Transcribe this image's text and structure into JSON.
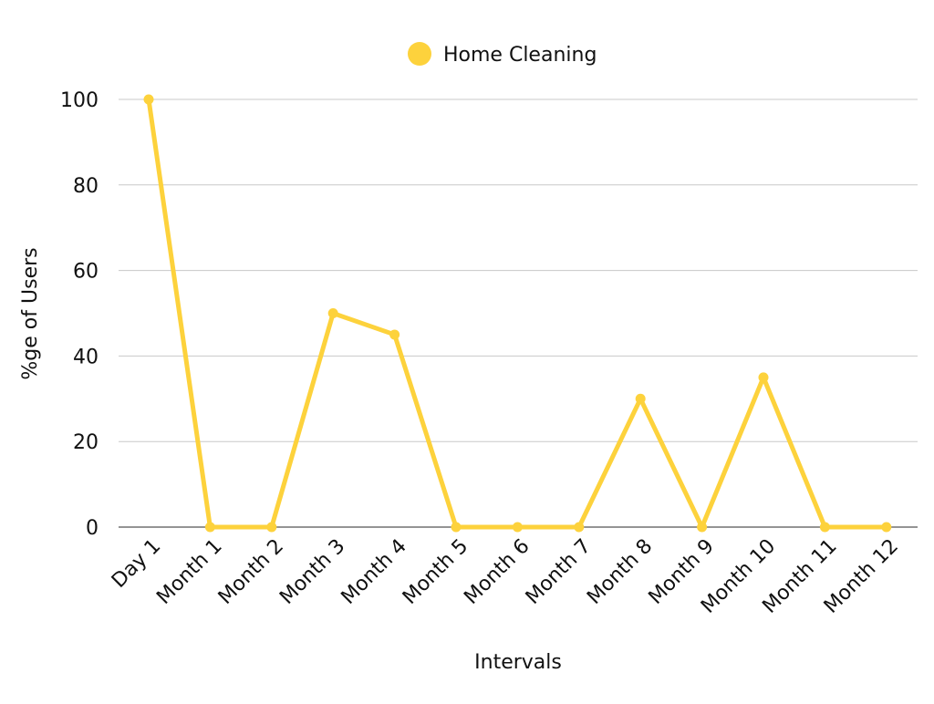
{
  "chart_data": {
    "type": "line",
    "categories": [
      "Day 1",
      "Month 1",
      "Month 2",
      "Month 3",
      "Month 4",
      "Month 5",
      "Month 6",
      "Month 7",
      "Month 8",
      "Month 9",
      "Month 10",
      "Month 11",
      "Month 12"
    ],
    "series": [
      {
        "name": "Home Cleaning",
        "values": [
          100,
          0,
          0,
          50,
          45,
          0,
          0,
          0,
          30,
          0,
          35,
          0,
          0
        ],
        "color": "#FDD23C"
      }
    ],
    "title": "",
    "xlabel": "Intervals",
    "ylabel": "%ge of Users",
    "ylim": [
      0,
      100
    ],
    "yticks": [
      0,
      20,
      40,
      60,
      80,
      100
    ],
    "grid": true,
    "legend_position": "top-center"
  }
}
